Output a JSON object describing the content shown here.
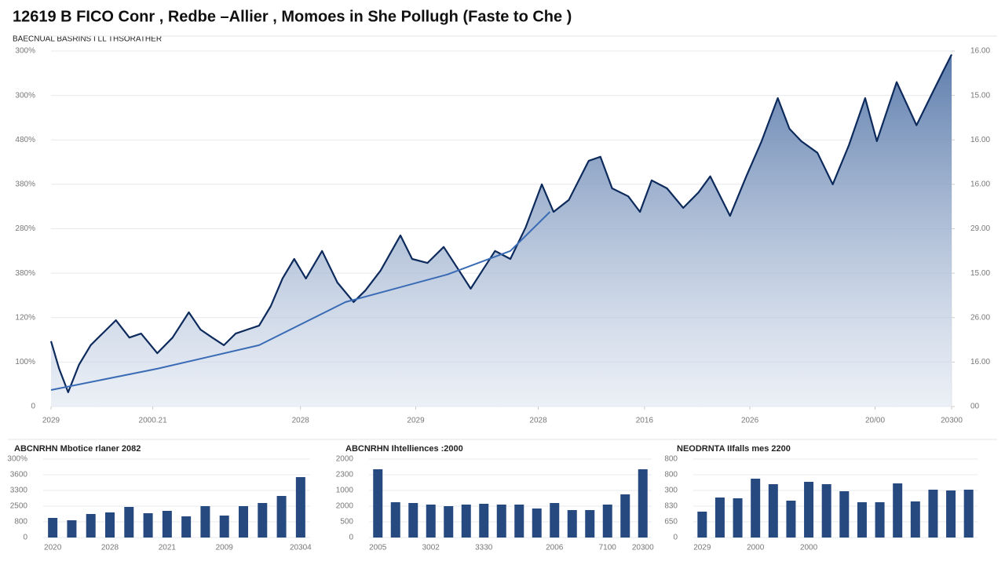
{
  "chart_data": [
    {
      "type": "line",
      "title": "12619 B FICO Conr , Redbe –Allier , Momoes in She Pollugh (Faste to Che )",
      "subtitle": "BAECNUAL BASRINS I LL THSORATHER",
      "x": [
        0,
        0.9,
        1.9,
        3.1,
        4.4,
        5.7,
        7.2,
        8.7,
        10.0,
        11.8,
        13.5,
        15.3,
        16.6,
        17.9,
        19.2,
        20.5,
        21.8,
        23.1,
        24.4,
        25.7,
        27.0,
        28.3,
        30.1,
        31.8,
        33.6,
        34.9,
        36.6,
        38.8,
        40.1,
        41.8,
        43.6,
        45.3,
        46.6,
        47.9,
        49.3,
        51.0,
        52.7,
        54.5,
        55.8,
        57.5,
        59.7,
        61.0,
        62.3,
        64.1,
        65.4,
        66.7,
        68.4,
        70.2,
        71.9,
        73.2,
        75.4,
        77.2,
        78.9,
        80.7,
        82.0,
        83.3,
        85.1,
        86.8,
        88.6,
        90.4,
        91.7,
        93.9,
        96.1,
        97.8,
        99.1,
        100
      ],
      "series": [
        {
          "color": "#0d2a5c",
          "area": true,
          "values": [
            1.47,
            0.85,
            0.32,
            0.94,
            1.38,
            1.64,
            1.94,
            1.55,
            1.64,
            1.2,
            1.55,
            2.12,
            1.73,
            1.55,
            1.38,
            1.64,
            1.73,
            1.82,
            2.26,
            2.88,
            3.32,
            2.88,
            3.5,
            2.79,
            2.35,
            2.61,
            3.06,
            3.85,
            3.32,
            3.23,
            3.59,
            3.06,
            2.65,
            3.06,
            3.5,
            3.32,
            4.03,
            5.0,
            4.38,
            4.65,
            5.53,
            5.62,
            4.91,
            4.73,
            4.38,
            5.09,
            4.91,
            4.47,
            4.82,
            5.18,
            4.29,
            5.18,
            5.97,
            6.94,
            6.25,
            5.97,
            5.71,
            5.0,
            5.88,
            6.94,
            5.97,
            7.3,
            6.33,
            7.03,
            7.56,
            7.92
          ]
        },
        {
          "color": "#3a6bb5",
          "x": [
            0,
            11.8,
            23.1,
            32.7,
            44.0,
            51.0,
            55.4
          ],
          "values": [
            0.37,
            0.85,
            1.38,
            2.35,
            2.97,
            3.5,
            4.38
          ]
        }
      ],
      "xlim": [
        0,
        100
      ],
      "xticks": [
        {
          "value": 0,
          "label": "2029"
        },
        {
          "value": 11.3,
          "label": "2000.21"
        },
        {
          "value": 27.7,
          "label": "2028"
        },
        {
          "value": 40.5,
          "label": "2029"
        },
        {
          "value": 54.1,
          "label": "2028"
        },
        {
          "value": 65.9,
          "label": "2016"
        },
        {
          "value": 77.6,
          "label": "2026"
        },
        {
          "value": 91.5,
          "label": "20/00"
        },
        {
          "value": 100,
          "label": "20300"
        }
      ],
      "ylim": [
        0,
        8
      ],
      "yticks": [
        0,
        {
          "value": 1,
          "label": "100%"
        },
        {
          "value": 2,
          "label": "120%"
        },
        {
          "value": 3,
          "label": "380%"
        },
        {
          "value": 4,
          "label": "280%"
        },
        {
          "value": 5,
          "label": "380%"
        },
        {
          "value": 6,
          "label": "480%"
        },
        {
          "value": 7,
          "label": "300%"
        },
        {
          "value": 8,
          "label": "300%"
        }
      ],
      "y2lim": [
        0,
        8
      ],
      "y2ticks": [
        {
          "value": 0,
          "label": "00"
        },
        {
          "value": 1,
          "label": "16.00"
        },
        {
          "value": 2,
          "label": "26.00"
        },
        {
          "value": 3,
          "label": "15.00"
        },
        {
          "value": 4,
          "label": "29.00"
        },
        {
          "value": 5,
          "label": "16.00"
        },
        {
          "value": 6,
          "label": "16.00"
        },
        {
          "value": 7,
          "label": "15.00"
        },
        {
          "value": 8,
          "label": "16.00"
        }
      ],
      "grid": true
    },
    {
      "type": "bar",
      "title": "ABCNRHN Mbotice rlaner 2082",
      "color": "#264a80",
      "categories": [
        "2020",
        null,
        null,
        "2028",
        null,
        null,
        "2021",
        null,
        null,
        "2009",
        null,
        null,
        null,
        "20304"
      ],
      "values": [
        1.25,
        1.1,
        1.5,
        1.6,
        1.95,
        1.55,
        1.7,
        1.35,
        2.0,
        1.4,
        2.0,
        2.2,
        2.65,
        3.85
      ],
      "ylim": [
        0,
        5
      ],
      "yticks": [
        0,
        {
          "value": 1,
          "label": "800"
        },
        {
          "value": 2,
          "label": "2500"
        },
        {
          "value": 3,
          "label": "3300"
        },
        {
          "value": 4,
          "label": "3600"
        },
        {
          "value": 5,
          "label": "300%"
        }
      ],
      "grid": true
    },
    {
      "type": "bar",
      "title": "ABCNRHN Ihtelliences :2000",
      "color": "#264a80",
      "categories": [
        "2005",
        null,
        null,
        "3002",
        null,
        null,
        "3330",
        null,
        null,
        null,
        "2006",
        null,
        null,
        "7100",
        null,
        "20300"
      ],
      "values": [
        4.35,
        2.25,
        2.2,
        2.1,
        2.0,
        2.1,
        2.15,
        2.1,
        2.1,
        1.85,
        2.2,
        1.75,
        1.75,
        2.1,
        2.75,
        4.35
      ],
      "ylim": [
        0,
        5
      ],
      "yticks": [
        0,
        {
          "value": 1,
          "label": "500"
        },
        {
          "value": 2,
          "label": "2000"
        },
        {
          "value": 3,
          "label": "1000"
        },
        {
          "value": 4,
          "label": "2300"
        },
        {
          "value": 5,
          "label": "2000"
        }
      ],
      "grid": true
    },
    {
      "type": "bar",
      "title": "NEODRNTA IIfalls mes 2200",
      "color": "#264a80",
      "categories": [
        "2029",
        null,
        null,
        "2000",
        null,
        null,
        "2000",
        null,
        null,
        null,
        null,
        null,
        null,
        null,
        null,
        null
      ],
      "values": [
        1.65,
        2.55,
        2.5,
        3.75,
        3.4,
        2.35,
        3.55,
        3.4,
        2.95,
        2.25,
        2.25,
        3.45,
        2.3,
        3.05,
        3.0,
        3.05
      ],
      "ylim": [
        0,
        5
      ],
      "yticks": [
        0,
        {
          "value": 1,
          "label": "650"
        },
        {
          "value": 2,
          "label": "830"
        },
        {
          "value": 3,
          "label": "300"
        },
        {
          "value": 4,
          "label": "800"
        },
        {
          "value": 5,
          "label": "800"
        }
      ],
      "grid": true
    }
  ]
}
